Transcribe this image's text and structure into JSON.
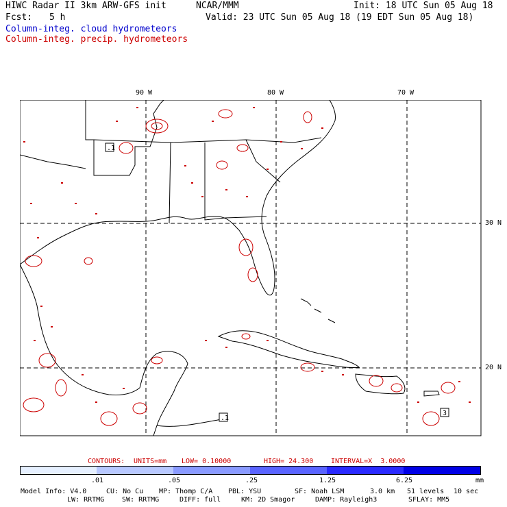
{
  "header": {
    "title_left": "HIWC Radar II 3km ARW-GFS init",
    "org": "NCAR/MMM",
    "init": "Init: 18 UTC Sun 05 Aug 18",
    "fcst_label": "Fcst:",
    "fcst_value": "5 h",
    "valid": "Valid: 23 UTC Sun 05 Aug 18 (19 EDT Sun 05 Aug 18)",
    "legend_cloud": "Column-integ. cloud hydrometeors",
    "legend_precip": "Column-integ. precip. hydrometeors"
  },
  "map": {
    "lon_labels": [
      "90 W",
      "80 W",
      "70 W"
    ],
    "lat_labels": [
      "30 N",
      "20 N"
    ],
    "boxed_labels": [
      ".1",
      ".1",
      "3"
    ]
  },
  "contours": {
    "label": "CONTOURS:",
    "units": "UNITS=mm",
    "low": "LOW= 0.10000",
    "high": "HIGH= 24.300",
    "interval": "INTERVAL=X  3.0000"
  },
  "colorbar": {
    "ticks": [
      ".01",
      ".05",
      ".25",
      "1.25",
      "6.25"
    ],
    "unit": "mm",
    "colors": [
      "#ffffff",
      "#e6f0ff",
      "#b8c8ff",
      "#8a9aff",
      "#5a64ff",
      "#2a2aff",
      "#0000e6"
    ]
  },
  "footer": {
    "line1": [
      "Model Info: V4.0",
      "CU: No Cu",
      "MP: Thomp C/A",
      "PBL: YSU",
      "SF: Noah LSM",
      "3.0 km",
      "51 levels",
      "10 sec"
    ],
    "line2": [
      "LW: RRTMG",
      "SW: RRTMG",
      "DIFF: full",
      "KM: 2D Smagor",
      "DAMP: Rayleigh3",
      "SFLAY: MM5"
    ]
  },
  "colors": {
    "cloud": "#0000cc",
    "precip": "#cc0000",
    "grid": "#000000"
  }
}
